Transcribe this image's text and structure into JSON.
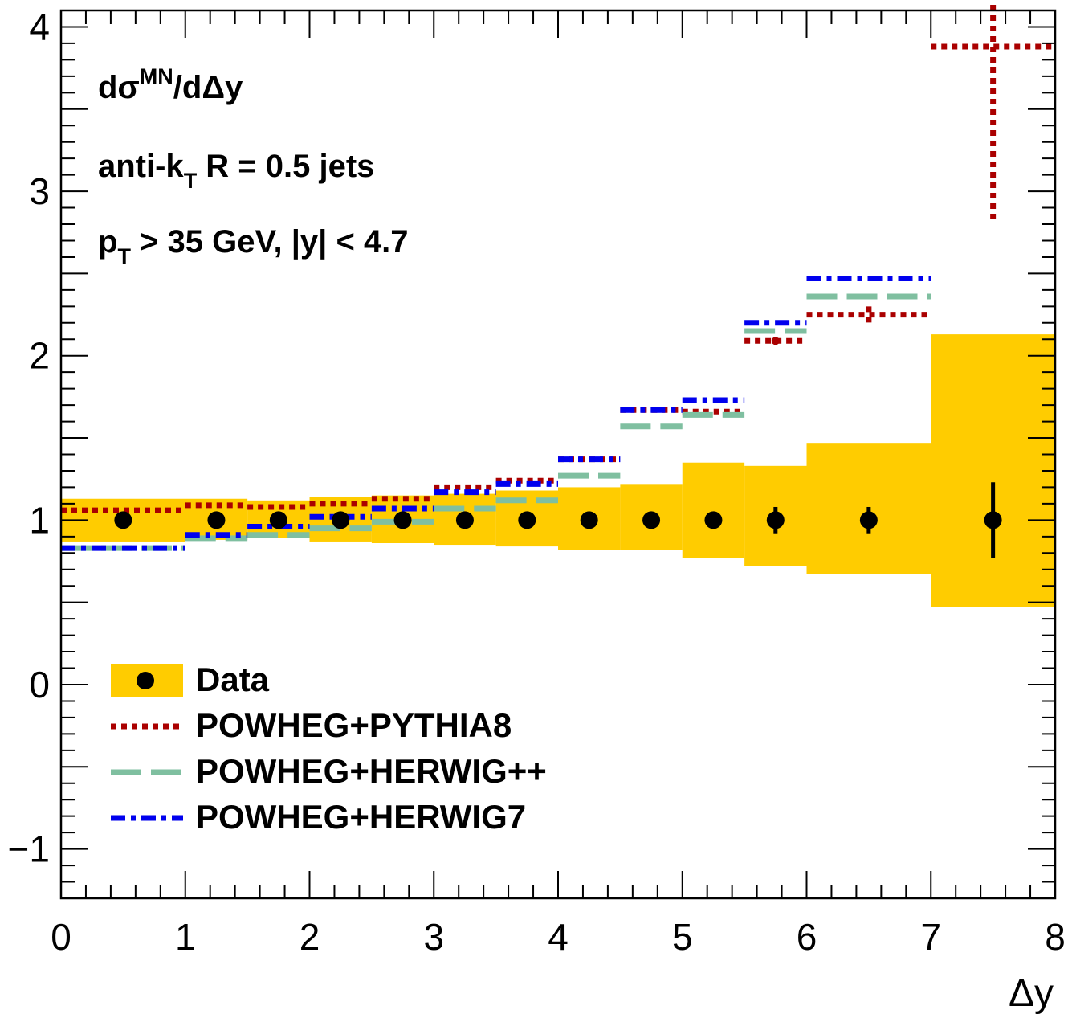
{
  "chart_data": {
    "type": "line",
    "title": "",
    "xlabel": "Δy",
    "ylabel": "",
    "xlim": [
      0,
      8
    ],
    "ylim": [
      -1.3,
      4.1
    ],
    "x_ticks": [
      "0",
      "1",
      "2",
      "3",
      "4",
      "5",
      "6",
      "7",
      "8"
    ],
    "y_ticks": [
      "−1",
      "0",
      "1",
      "2",
      "3",
      "4"
    ],
    "annotations": {
      "line1_main": "dσ",
      "line1_sup": "MN",
      "line1_rest": "/dΔy",
      "line2_main": "anti-k",
      "line2_sub": "T",
      "line2_rest": " R = 0.5 jets",
      "line3_main": "p",
      "line3_sub": "T",
      "line3_rest": " > 35 GeV, |y| < 4.7"
    },
    "bins": [
      [
        0,
        1
      ],
      [
        1,
        1.5
      ],
      [
        1.5,
        2
      ],
      [
        2,
        2.5
      ],
      [
        2.5,
        3
      ],
      [
        3,
        3.5
      ],
      [
        3.5,
        4
      ],
      [
        4,
        4.5
      ],
      [
        4.5,
        5
      ],
      [
        5,
        5.5
      ],
      [
        5.5,
        6
      ],
      [
        6,
        7
      ],
      [
        7,
        8
      ]
    ],
    "data": {
      "name": "Data",
      "x": [
        0.5,
        1.25,
        1.75,
        2.25,
        2.75,
        3.25,
        3.75,
        4.25,
        4.75,
        5.25,
        5.75,
        6.5,
        7.5
      ],
      "values": [
        1,
        1,
        1,
        1,
        1,
        1,
        1,
        1,
        1,
        1,
        1,
        1,
        1
      ],
      "stat_err": [
        0.01,
        0.01,
        0.01,
        0.01,
        0.01,
        0.01,
        0.01,
        0.01,
        0.02,
        0.03,
        0.08,
        0.08,
        0.23
      ],
      "band_low": [
        0.87,
        0.88,
        0.89,
        0.87,
        0.86,
        0.85,
        0.84,
        0.82,
        0.82,
        0.77,
        0.72,
        0.67,
        0.47
      ],
      "band_high": [
        1.13,
        1.13,
        1.12,
        1.14,
        1.15,
        1.16,
        1.18,
        1.2,
        1.22,
        1.35,
        1.33,
        1.47,
        2.13
      ]
    },
    "series": [
      {
        "name": "POWHEG+PYTHIA8",
        "color": "#aa0000",
        "dash": "dotted",
        "values": [
          1.06,
          1.09,
          1.08,
          1.1,
          1.13,
          1.2,
          1.24,
          1.37,
          1.67,
          1.66,
          2.09,
          2.25,
          3.88
        ],
        "err": [
          0.005,
          0.005,
          0.005,
          0.005,
          0.005,
          0.01,
          0.01,
          0.01,
          0.01,
          0.01,
          0.02,
          0.05,
          1.08
        ]
      },
      {
        "name": "POWHEG+HERWIG++",
        "color": "#7fbfa0",
        "dash": "dashed",
        "values": [
          0.83,
          0.89,
          0.91,
          0.95,
          0.99,
          1.07,
          1.12,
          1.27,
          1.57,
          1.64,
          2.15,
          2.36,
          null
        ]
      },
      {
        "name": "POWHEG+HERWIG7",
        "color": "#0000ee",
        "dash": "dashdot",
        "values": [
          0.83,
          0.91,
          0.96,
          1.02,
          1.07,
          1.17,
          1.22,
          1.37,
          1.67,
          1.73,
          2.2,
          2.47,
          null
        ]
      }
    ],
    "legend": {
      "position": "bottom-left"
    },
    "grid": false,
    "colors": {
      "band": "#ffcc00",
      "data": "#000000"
    }
  }
}
